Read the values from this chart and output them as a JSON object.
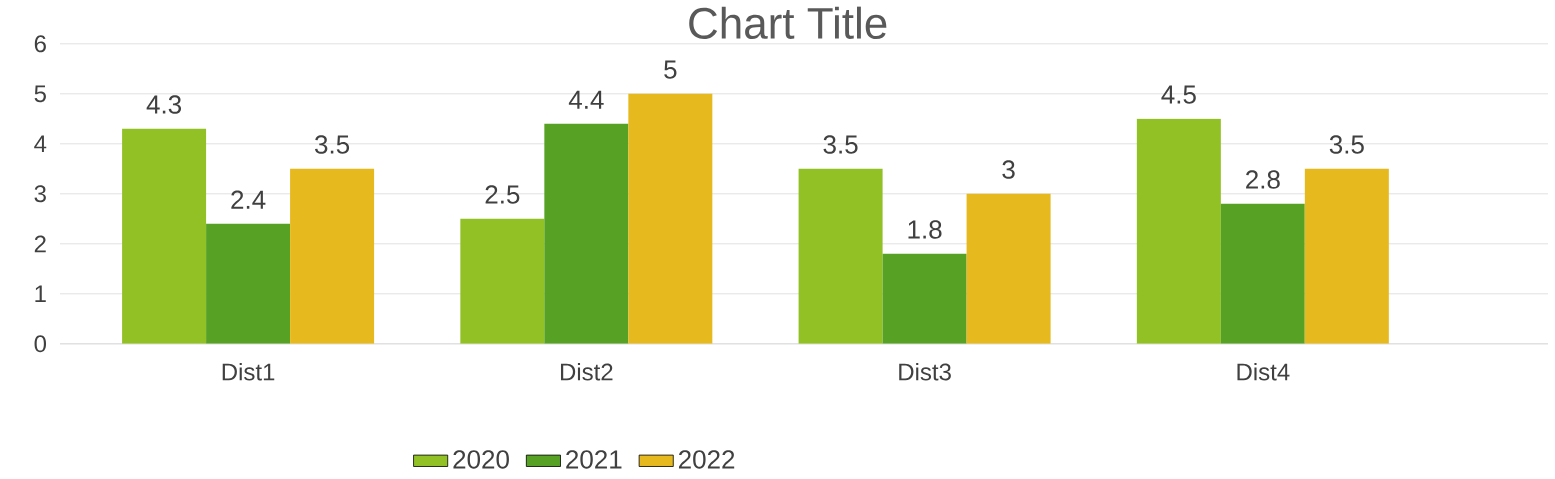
{
  "chart_data": {
    "type": "bar",
    "title": "Chart Title",
    "categories": [
      "Dist1",
      "Dist2",
      "Dist3",
      "Dist4"
    ],
    "series": [
      {
        "name": "2020",
        "color": "#92c126",
        "values": [
          4.3,
          2.5,
          3.5,
          4.5
        ]
      },
      {
        "name": "2021",
        "color": "#57a225",
        "values": [
          2.4,
          4.4,
          1.8,
          2.8
        ]
      },
      {
        "name": "2022",
        "color": "#e6b91e",
        "values": [
          3.5,
          5,
          3,
          3.5
        ]
      }
    ],
    "ylim": [
      0,
      6
    ],
    "yticks": [
      0,
      1,
      2,
      3,
      4,
      5,
      6
    ],
    "grid": "y",
    "data_labels": true,
    "legend": "bottom"
  }
}
